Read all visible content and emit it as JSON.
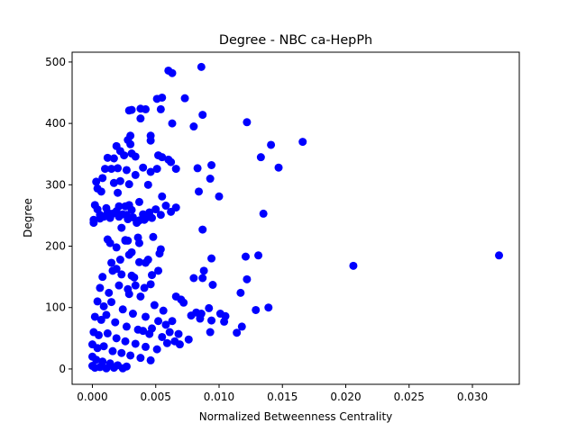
{
  "chart_data": {
    "type": "scatter",
    "title": "Degree - NBC ca-HepPh",
    "xlabel": "Normalized Betweenness Centrality",
    "ylabel": "Degree",
    "xlim": [
      -0.0016,
      0.0337
    ],
    "ylim": [
      -25,
      516
    ],
    "xticks": [
      0.0,
      0.005,
      0.01,
      0.015,
      0.02,
      0.025,
      0.03
    ],
    "xtick_labels": [
      "0.000",
      "0.005",
      "0.010",
      "0.015",
      "0.020",
      "0.025",
      "0.030"
    ],
    "yticks": [
      0,
      100,
      200,
      300,
      400,
      500
    ],
    "ytick_labels": [
      "0",
      "100",
      "200",
      "300",
      "400",
      "500"
    ],
    "grid": false,
    "marker_color": "#0000ff",
    "series": [
      {
        "points": [
          [
            0.0321,
            185
          ],
          [
            0.0206,
            168
          ],
          [
            0.0166,
            370
          ],
          [
            0.0147,
            328
          ],
          [
            0.0141,
            365
          ],
          [
            0.0139,
            100
          ],
          [
            0.0135,
            253
          ],
          [
            0.0133,
            345
          ],
          [
            0.0131,
            185
          ],
          [
            0.0129,
            96
          ],
          [
            0.0122,
            402
          ],
          [
            0.0121,
            183
          ],
          [
            0.0122,
            146
          ],
          [
            0.0117,
            124
          ],
          [
            0.0118,
            69
          ],
          [
            0.0114,
            59
          ],
          [
            0.0104,
            77
          ],
          [
            0.0105,
            86
          ],
          [
            0.01,
            281
          ],
          [
            0.0101,
            90
          ],
          [
            0.0094,
            332
          ],
          [
            0.0093,
            310
          ],
          [
            0.0094,
            180
          ],
          [
            0.0095,
            137
          ],
          [
            0.0094,
            79
          ],
          [
            0.0093,
            60
          ],
          [
            0.0092,
            99
          ],
          [
            0.0088,
            160
          ],
          [
            0.0087,
            227
          ],
          [
            0.0087,
            148
          ],
          [
            0.0086,
            492
          ],
          [
            0.0087,
            414
          ],
          [
            0.0086,
            90
          ],
          [
            0.0085,
            82
          ],
          [
            0.0084,
            289
          ],
          [
            0.0083,
            327
          ],
          [
            0.008,
            395
          ],
          [
            0.008,
            148
          ],
          [
            0.0082,
            92
          ],
          [
            0.0078,
            87
          ],
          [
            0.0076,
            48
          ],
          [
            0.0073,
            441
          ],
          [
            0.0072,
            108
          ],
          [
            0.007,
            113
          ],
          [
            0.0068,
            57
          ],
          [
            0.0069,
            40
          ],
          [
            0.0066,
            263
          ],
          [
            0.0066,
            326
          ],
          [
            0.0066,
            118
          ],
          [
            0.0063,
            482
          ],
          [
            0.006,
            486
          ],
          [
            0.0063,
            400
          ],
          [
            0.0062,
            337
          ],
          [
            0.006,
            341
          ],
          [
            0.0062,
            256
          ],
          [
            0.0063,
            78
          ],
          [
            0.0061,
            60
          ],
          [
            0.0059,
            42
          ],
          [
            0.0058,
            72
          ],
          [
            0.0055,
            442
          ],
          [
            0.0054,
            423
          ],
          [
            0.0055,
            345
          ],
          [
            0.0055,
            281
          ],
          [
            0.0054,
            251
          ],
          [
            0.0054,
            195
          ],
          [
            0.0053,
            188
          ],
          [
            0.0051,
            440
          ],
          [
            0.0052,
            348
          ],
          [
            0.0051,
            326
          ],
          [
            0.005,
            260
          ],
          [
            0.0052,
            78
          ],
          [
            0.0048,
            215
          ],
          [
            0.0047,
            153
          ],
          [
            0.0046,
            380
          ],
          [
            0.0046,
            372
          ],
          [
            0.0046,
            321
          ],
          [
            0.0045,
            255
          ],
          [
            0.0046,
            138
          ],
          [
            0.0044,
            300
          ],
          [
            0.0042,
            423
          ],
          [
            0.0043,
            247
          ],
          [
            0.0042,
            173
          ],
          [
            0.0041,
            132
          ],
          [
            0.004,
            328
          ],
          [
            0.004,
            252
          ],
          [
            0.004,
            62
          ],
          [
            0.0038,
            424
          ],
          [
            0.0038,
            408
          ],
          [
            0.0037,
            272
          ],
          [
            0.0037,
            242
          ],
          [
            0.0037,
            205
          ],
          [
            0.0037,
            174
          ],
          [
            0.0034,
            346
          ],
          [
            0.0034,
            316
          ],
          [
            0.0035,
            238
          ],
          [
            0.0034,
            136
          ],
          [
            0.0031,
            422
          ],
          [
            0.0031,
            351
          ],
          [
            0.0031,
            259
          ],
          [
            0.0031,
            152
          ],
          [
            0.003,
            380
          ],
          [
            0.003,
            366
          ],
          [
            0.0029,
            421
          ],
          [
            0.0029,
            301
          ],
          [
            0.0029,
            267
          ],
          [
            0.0028,
            373
          ],
          [
            0.0028,
            244
          ],
          [
            0.0028,
            209
          ],
          [
            0.0029,
            186
          ],
          [
            0.0029,
            122
          ],
          [
            0.0025,
            348
          ],
          [
            0.0027,
            324
          ],
          [
            0.0026,
            265
          ],
          [
            0.0026,
            210
          ],
          [
            0.0024,
            252
          ],
          [
            0.0023,
            230
          ],
          [
            0.0022,
            355
          ],
          [
            0.0022,
            306
          ],
          [
            0.0021,
            265
          ],
          [
            0.002,
            327
          ],
          [
            0.002,
            287
          ],
          [
            0.0019,
            363
          ],
          [
            0.0019,
            257
          ],
          [
            0.0019,
            163
          ],
          [
            0.0017,
            343
          ],
          [
            0.0017,
            303
          ],
          [
            0.0015,
            326
          ],
          [
            0.0014,
            246
          ],
          [
            0.0013,
            251
          ],
          [
            0.0012,
            344
          ],
          [
            0.0012,
            211
          ],
          [
            0.0011,
            262
          ],
          [
            0.001,
            326
          ],
          [
            0.0009,
            248
          ],
          [
            0.0008,
            311
          ],
          [
            0.0007,
            289
          ],
          [
            0.0006,
            251
          ],
          [
            0.0004,
            294
          ],
          [
            0.0004,
            260
          ],
          [
            0.0003,
            305
          ],
          [
            0.0002,
            267
          ],
          [
            0.0001,
            243
          ],
          [
            0.0001,
            238
          ],
          [
            0.0006,
            245
          ],
          [
            0.0012,
            255
          ],
          [
            0.0016,
            253
          ],
          [
            0.0021,
            248
          ],
          [
            0.0027,
            251
          ],
          [
            0.0032,
            247
          ],
          [
            0.0041,
            243
          ],
          [
            0.0047,
            246
          ],
          [
            0.0058,
            266
          ],
          [
            0.0014,
            205
          ],
          [
            0.0019,
            198
          ],
          [
            0.0026,
            209
          ],
          [
            0.0036,
            214
          ],
          [
            0.0015,
            173
          ],
          [
            0.0022,
            178
          ],
          [
            0.0031,
            190
          ],
          [
            0.0044,
            178
          ],
          [
            0.0008,
            150
          ],
          [
            0.0016,
            160
          ],
          [
            0.0023,
            154
          ],
          [
            0.0033,
            149
          ],
          [
            0.0052,
            160
          ],
          [
            0.0006,
            132
          ],
          [
            0.0013,
            124
          ],
          [
            0.0021,
            136
          ],
          [
            0.0028,
            130
          ],
          [
            0.0038,
            118
          ],
          [
            0.0049,
            104
          ],
          [
            0.0056,
            95
          ],
          [
            0.0004,
            110
          ],
          [
            0.0009,
            102
          ],
          [
            0.0015,
            109
          ],
          [
            0.0024,
            97
          ],
          [
            0.0032,
            90
          ],
          [
            0.0042,
            85
          ],
          [
            0.0047,
            66
          ],
          [
            0.0055,
            52
          ],
          [
            0.0065,
            45
          ],
          [
            0.0002,
            85
          ],
          [
            0.0007,
            80
          ],
          [
            0.0011,
            88
          ],
          [
            0.0018,
            76
          ],
          [
            0.0027,
            69
          ],
          [
            0.0036,
            64
          ],
          [
            0.0045,
            57
          ],
          [
            0.0001,
            60
          ],
          [
            0.0005,
            55
          ],
          [
            0.0012,
            58
          ],
          [
            0.0019,
            50
          ],
          [
            0.0026,
            45
          ],
          [
            0.0034,
            41
          ],
          [
            0.0042,
            36
          ],
          [
            0.0051,
            32
          ],
          [
            0.0,
            40
          ],
          [
            0.0004,
            34
          ],
          [
            0.0009,
            37
          ],
          [
            0.0016,
            29
          ],
          [
            0.0023,
            26
          ],
          [
            0.003,
            22
          ],
          [
            0.0038,
            18
          ],
          [
            0.0046,
            14
          ],
          [
            0.0,
            20
          ],
          [
            0.0003,
            15
          ],
          [
            0.0008,
            12
          ],
          [
            0.0014,
            9
          ],
          [
            0.002,
            6
          ],
          [
            0.0027,
            4
          ],
          [
            0.0,
            5
          ],
          [
            0.0002,
            2
          ],
          [
            0.0006,
            3
          ],
          [
            0.0011,
            1
          ],
          [
            0.0017,
            2
          ],
          [
            0.0024,
            1
          ]
        ]
      }
    ]
  }
}
